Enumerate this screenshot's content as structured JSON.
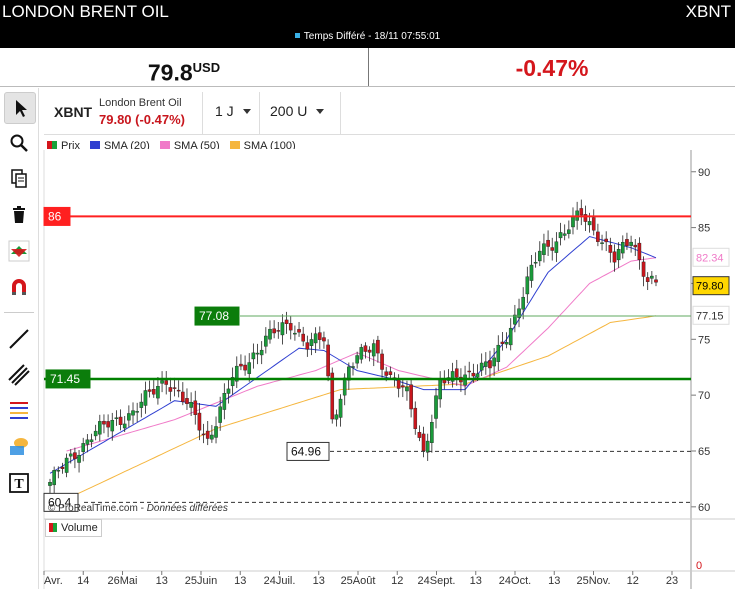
{
  "header": {
    "title": "LONDON BRENT OIL",
    "ticker": "XBNT",
    "delay_label": "Temps Différé",
    "datetime": "18/11 07:55:01"
  },
  "quote": {
    "price": "79.8",
    "currency": "USD",
    "change": "-0.47%"
  },
  "instrument": {
    "symbol": "XBNT",
    "name": "London Brent Oil",
    "price_change": "79.80 (-0.47%)",
    "interval": "1 J",
    "units": "200 U"
  },
  "legend": [
    {
      "label": "Prix",
      "color": "#d4161c"
    },
    {
      "label": "SMA (20)",
      "color": "#2f3fd0"
    },
    {
      "label": "SMA (50)",
      "color": "#f07ac8"
    },
    {
      "label": "SMA (100)",
      "color": "#f5b63f"
    }
  ],
  "credit": {
    "source": "© ProRealTime.com",
    "note": "Données différées"
  },
  "volume_label": "Volume",
  "volume_axis_value": "0",
  "toolbar": [
    {
      "name": "cursor-icon"
    },
    {
      "name": "magnifier-icon"
    },
    {
      "name": "copy-icon"
    },
    {
      "name": "trash-icon"
    },
    {
      "name": "buy-sell-icon"
    },
    {
      "name": "magnet-icon"
    },
    {
      "name": "line-tool-icon"
    },
    {
      "name": "parallel-lines-icon"
    },
    {
      "name": "fibonacci-icon"
    },
    {
      "name": "shapes-icon"
    },
    {
      "name": "text-tool-icon"
    }
  ],
  "chart_data": {
    "type": "candlestick",
    "ylim": [
      59,
      91.5
    ],
    "yticks": [
      60,
      65,
      70,
      75,
      80,
      85,
      90
    ],
    "xticks": [
      "Avr.",
      "14",
      "26Mai",
      "13",
      "25Juin",
      "13",
      "24Juil.",
      "13",
      "25Août",
      "12",
      "24Sept.",
      "13",
      "24Oct.",
      "13",
      "25Nov.",
      "12",
      "23"
    ],
    "levels": [
      {
        "value": 86,
        "label": "86",
        "style": "solid",
        "color": "#ff2020"
      },
      {
        "value": 77.08,
        "label": "77.08",
        "style": "solid",
        "color": "#5fa85f"
      },
      {
        "value": 71.45,
        "label": "71.45",
        "style": "solid",
        "color": "#008000"
      },
      {
        "value": 64.96,
        "label": "64.96",
        "style": "dashed",
        "color": "#333333"
      },
      {
        "value": 60.4,
        "label": "60.4",
        "style": "dashed",
        "color": "#333333"
      }
    ],
    "price_anchors": [
      [
        0,
        62.2
      ],
      [
        10,
        66.5
      ],
      [
        20,
        68.5
      ],
      [
        28,
        71.5
      ],
      [
        34,
        68.6
      ],
      [
        38,
        66.0
      ],
      [
        44,
        71.5
      ],
      [
        52,
        75.0
      ],
      [
        58,
        76.5
      ],
      [
        62,
        74.5
      ],
      [
        66,
        75.0
      ],
      [
        68,
        67.8
      ],
      [
        72,
        72.5
      ],
      [
        78,
        74.5
      ],
      [
        82,
        71.5
      ],
      [
        86,
        70.0
      ],
      [
        90,
        65.0
      ],
      [
        94,
        71.0
      ],
      [
        100,
        72.0
      ],
      [
        106,
        72.5
      ],
      [
        112,
        77.0
      ],
      [
        118,
        83.0
      ],
      [
        124,
        84.5
      ],
      [
        128,
        86.3
      ],
      [
        132,
        84.5
      ],
      [
        136,
        82.0
      ],
      [
        140,
        84.2
      ],
      [
        144,
        80.3
      ],
      [
        146,
        79.8
      ]
    ],
    "sma_anchors": {
      "sma20": [
        [
          0,
          63.0
        ],
        [
          30,
          69.5
        ],
        [
          40,
          69.0
        ],
        [
          60,
          74.2
        ],
        [
          66,
          74.0
        ],
        [
          74,
          72.2
        ],
        [
          82,
          71.5
        ],
        [
          90,
          70.5
        ],
        [
          100,
          70.5
        ],
        [
          110,
          75.0
        ],
        [
          120,
          81.0
        ],
        [
          130,
          84.2
        ],
        [
          140,
          83.2
        ],
        [
          146,
          82.3
        ]
      ],
      "sma50": [
        [
          4,
          65.0
        ],
        [
          30,
          67.8
        ],
        [
          50,
          70.8
        ],
        [
          64,
          72.2
        ],
        [
          74,
          73.8
        ],
        [
          84,
          72.2
        ],
        [
          100,
          70.8
        ],
        [
          110,
          72.5
        ],
        [
          120,
          76.0
        ],
        [
          130,
          80.0
        ],
        [
          140,
          82.0
        ],
        [
          146,
          82.3
        ]
      ],
      "sma100": [
        [
          0,
          60.0
        ],
        [
          40,
          67.0
        ],
        [
          70,
          70.5
        ],
        [
          100,
          71.0
        ],
        [
          120,
          73.5
        ],
        [
          135,
          76.5
        ],
        [
          146,
          77.1
        ]
      ]
    },
    "axis_badges": [
      {
        "value": 82.34,
        "label": "82.34",
        "color": "#f07ac8"
      },
      {
        "value": 79.8,
        "label": "79.80",
        "color": "#000000",
        "bg": "#ffd700"
      },
      {
        "value": 77.15,
        "label": "77.15",
        "color": "#333333"
      }
    ],
    "candle_up": "#1a9a3a",
    "candle_down": "#c8161d"
  }
}
